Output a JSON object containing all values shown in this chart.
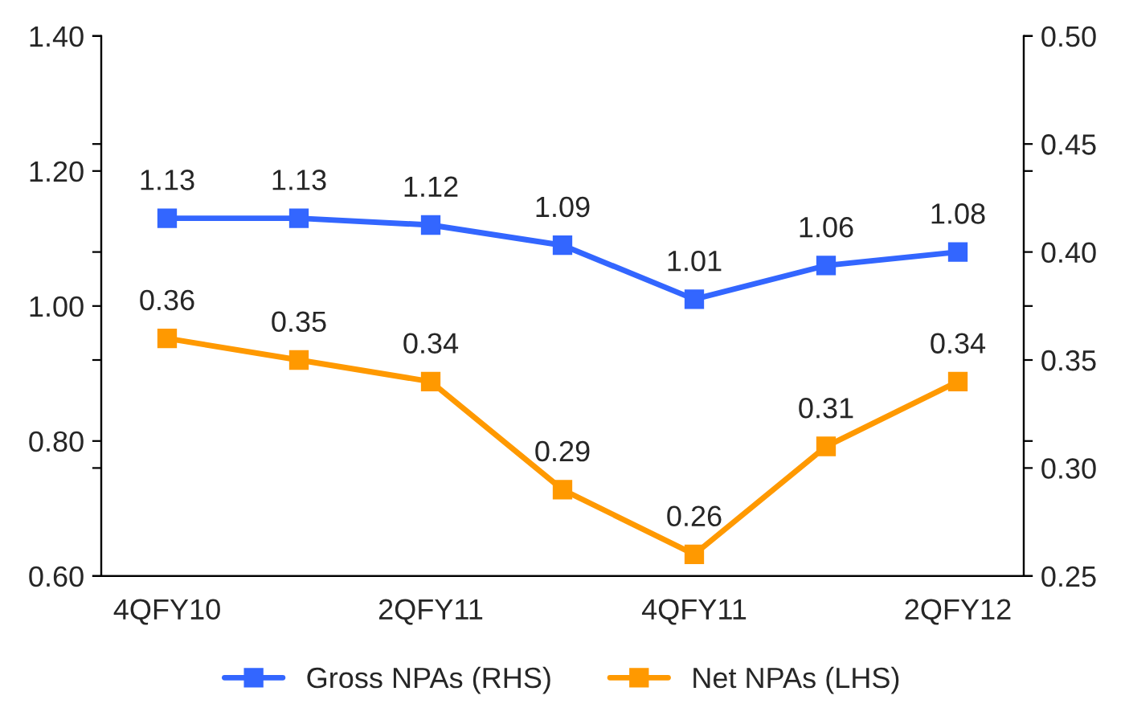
{
  "chart_data": {
    "type": "line",
    "categories": [
      "4QFY10",
      null,
      "2QFY11",
      null,
      "4QFY11",
      null,
      "2QFY12"
    ],
    "series": [
      {
        "name": "Gross NPAs (RHS)",
        "color": "#3366ff",
        "values": [
          1.13,
          1.13,
          1.12,
          1.09,
          1.01,
          1.06,
          1.08
        ]
      },
      {
        "name": "Net NPAs (LHS)",
        "color": "#ff9900",
        "axis": "y2",
        "values": [
          0.36,
          0.35,
          0.34,
          0.29,
          0.26,
          0.31,
          0.34
        ]
      }
    ],
    "ylim": [
      0.6,
      1.4
    ],
    "yticks": [
      {
        "value": 0.6,
        "label": "0.60"
      },
      {
        "value": 0.8,
        "label": "0.80"
      },
      {
        "value": 1.0,
        "label": "1.00"
      },
      {
        "value": 1.2,
        "label": "1.20"
      },
      {
        "value": 1.4,
        "label": "1.40"
      }
    ],
    "y2lim": [
      0.25,
      0.5
    ],
    "y2ticks": [
      {
        "value": 0.25,
        "label": "0.25"
      },
      {
        "value": 0.3,
        "label": "0.30"
      },
      {
        "value": 0.35,
        "label": "0.35"
      },
      {
        "value": 0.4,
        "label": "0.40"
      },
      {
        "value": 0.45,
        "label": "0.45"
      },
      {
        "value": 0.5,
        "label": "0.50"
      }
    ],
    "data_labels": true,
    "marker": "square",
    "line_style": "solid",
    "grid": false,
    "legend": "bottom"
  }
}
